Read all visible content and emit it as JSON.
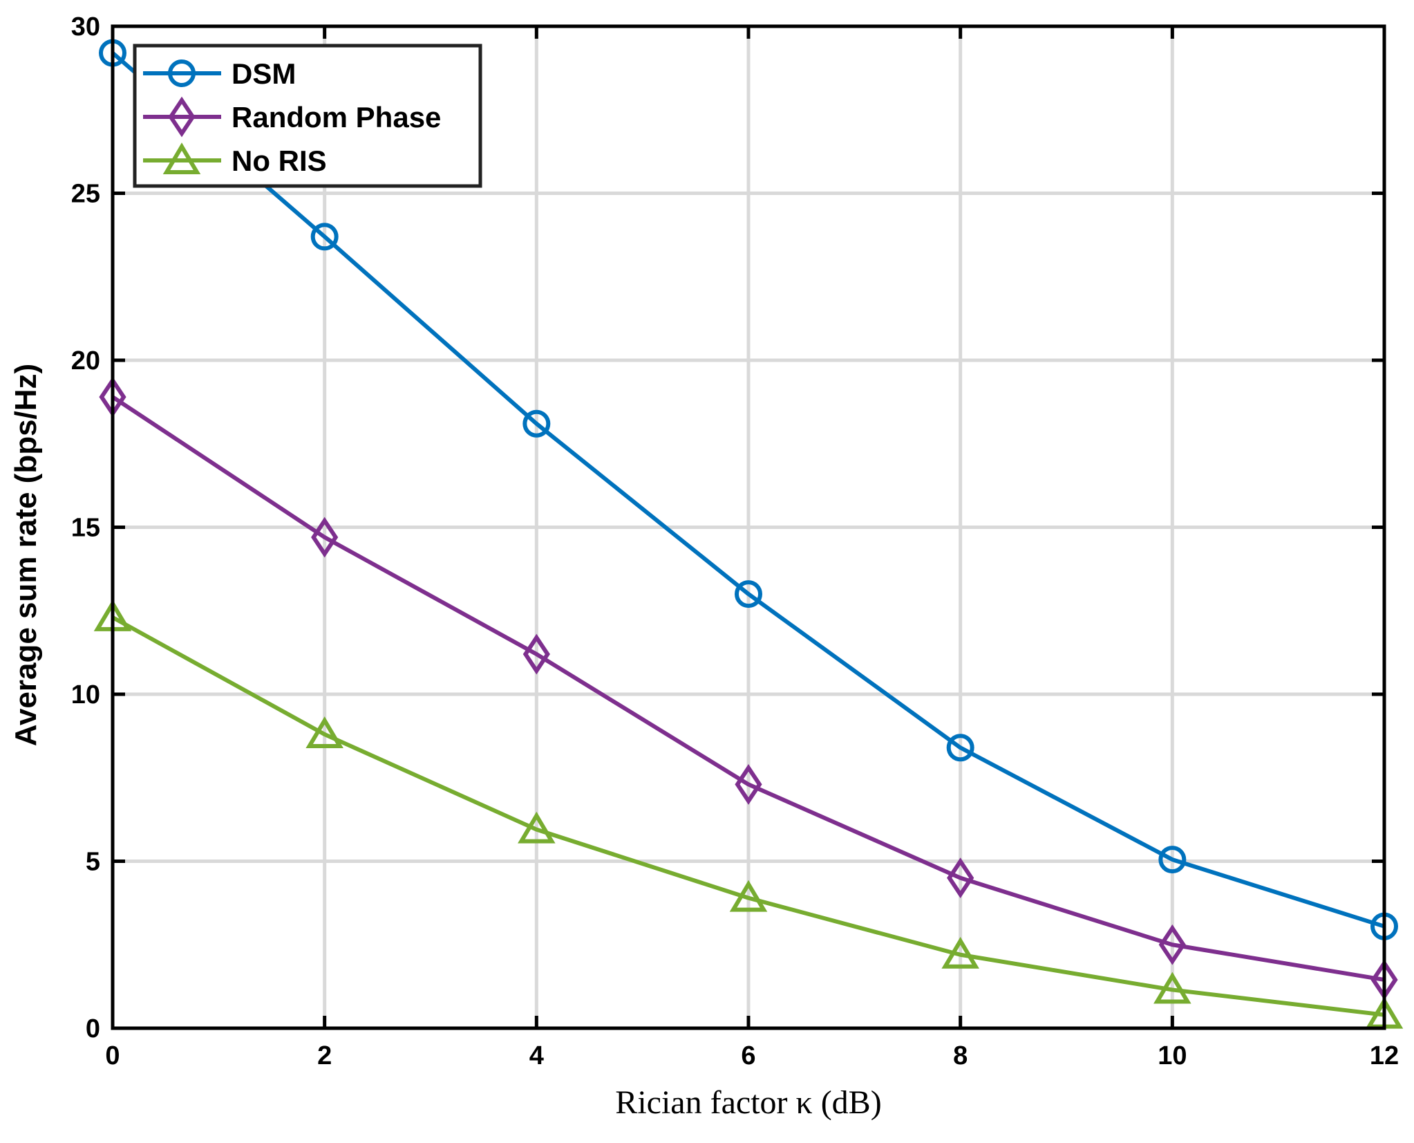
{
  "chart_data": {
    "type": "line",
    "title": "",
    "xlabel": "Rician factor κ (dB)",
    "ylabel": "Average sum rate (bps/Hz)",
    "xlim": [
      0,
      12
    ],
    "ylim": [
      0,
      30
    ],
    "xticks": [
      0,
      2,
      4,
      6,
      8,
      10,
      12
    ],
    "yticks": [
      0,
      5,
      10,
      15,
      20,
      25,
      30
    ],
    "grid": true,
    "legend_position": "top-left",
    "x": [
      0,
      2,
      4,
      6,
      8,
      10,
      12
    ],
    "series": [
      {
        "name": "DSM",
        "color": "#0072BD",
        "marker": "circle",
        "values": [
          29.2,
          23.7,
          18.1,
          13.0,
          8.4,
          5.05,
          3.05
        ]
      },
      {
        "name": "Random Phase",
        "color": "#7E2F8E",
        "marker": "diamond",
        "values": [
          18.9,
          14.7,
          11.2,
          7.3,
          4.5,
          2.5,
          1.45
        ]
      },
      {
        "name": "No RIS",
        "color": "#77AC30",
        "marker": "triangle",
        "values": [
          12.3,
          8.8,
          5.95,
          3.9,
          2.2,
          1.15,
          0.4
        ]
      }
    ]
  }
}
